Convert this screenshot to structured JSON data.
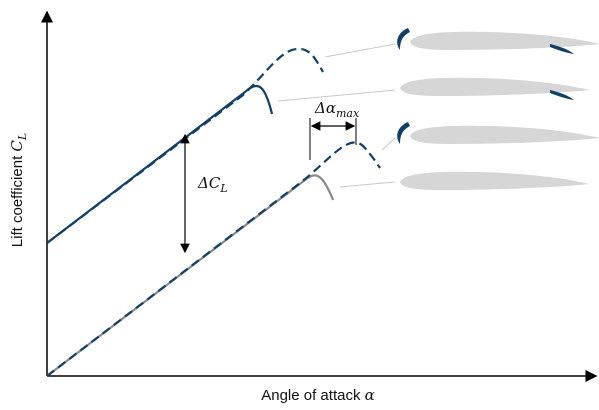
{
  "axes": {
    "y_label": "Lift coefficient",
    "y_symbol": "C",
    "y_subscript": "L",
    "x_label": "Angle of attack",
    "x_symbol": "α"
  },
  "annotations": {
    "delta_cl": "ΔC",
    "delta_cl_subscript": "L",
    "delta_alpha": "Δα",
    "delta_alpha_subscript": "max"
  }
}
